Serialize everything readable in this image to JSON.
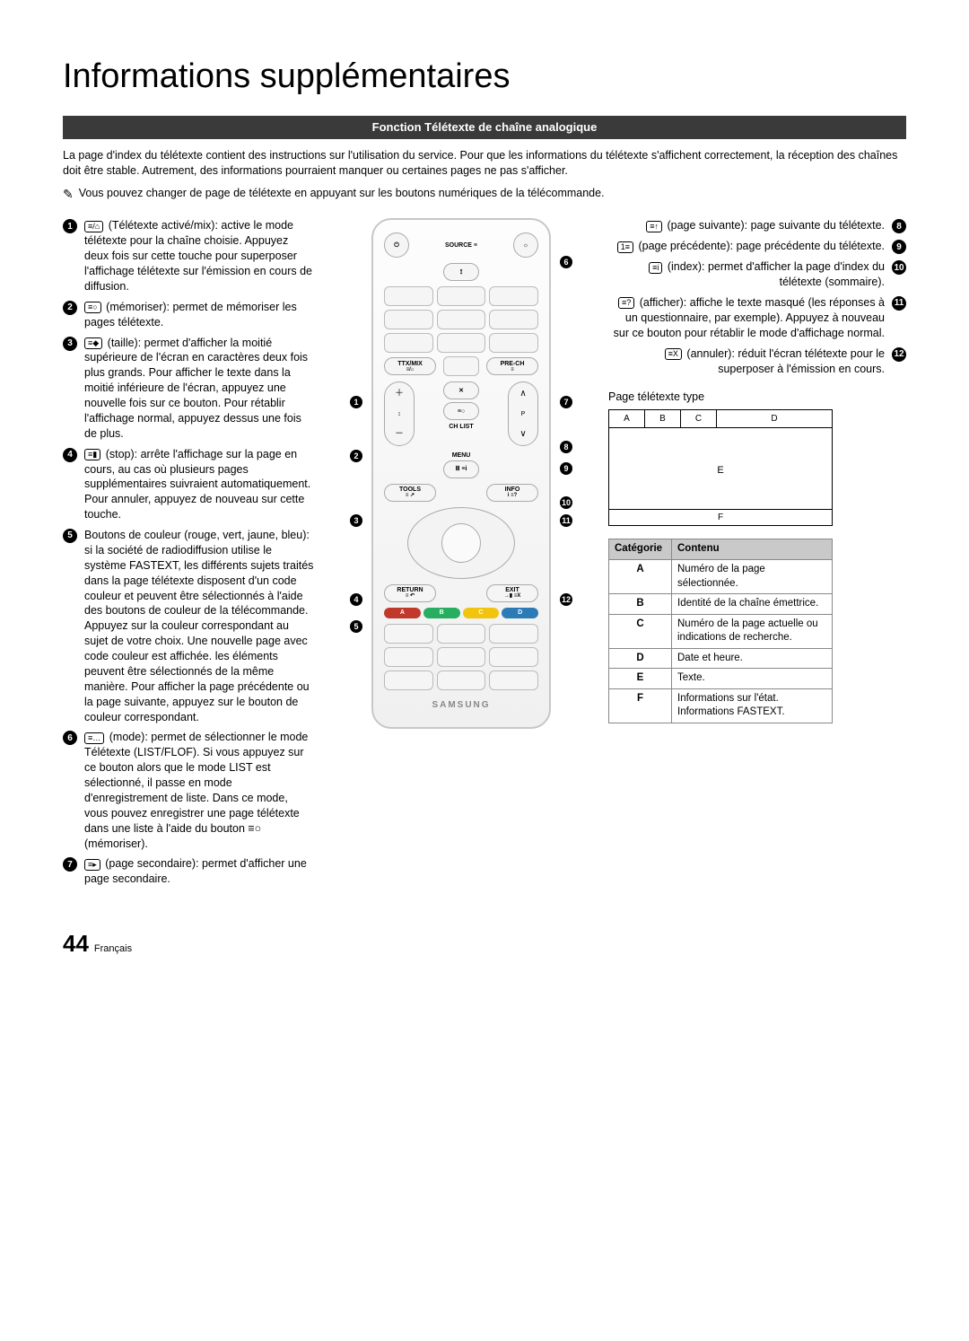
{
  "page": {
    "title": "Informations supplémentaires",
    "section_bar": "Fonction Télétexte de chaîne analogique",
    "intro": "La page d'index du télétexte contient des instructions sur l'utilisation du service. Pour que les informations du télétexte s'affichent correctement, la réception des chaînes doit être stable. Autrement, des informations pourraient manquer ou certaines pages ne pas s'afficher.",
    "note": "Vous pouvez changer de page de télétexte en appuyant sur les boutons numériques de la télécommande.",
    "note_icon": "✎"
  },
  "left_items": [
    {
      "n": "1",
      "icon": "≡/⌂",
      "text": "(Télétexte activé/mix): active le mode télétexte pour la chaîne choisie. Appuyez deux fois sur cette touche pour superposer l'affichage télétexte sur l'émission en cours de diffusion."
    },
    {
      "n": "2",
      "icon": "≡○",
      "text": "(mémoriser): permet de mémoriser les pages télétexte."
    },
    {
      "n": "3",
      "icon": "≡◆",
      "text": "(taille): permet d'afficher la moitié supérieure de l'écran en caractères deux fois plus grands. Pour afficher le texte dans la moitié inférieure de l'écran, appuyez une nouvelle fois sur ce bouton. Pour rétablir l'affichage normal, appuyez dessus une fois de plus."
    },
    {
      "n": "4",
      "icon": "≡▮",
      "text": "(stop): arrête l'affichage sur la page en cours, au cas où plusieurs pages supplémentaires suivraient automatiquement. Pour annuler, appuyez de nouveau sur cette touche."
    },
    {
      "n": "5",
      "icon": "",
      "text": "Boutons de couleur (rouge, vert, jaune, bleu): si la société de radiodiffusion utilise le système FASTEXT, les différents sujets traités dans la page télétexte disposent d'un code couleur et peuvent être sélectionnés à l'aide des boutons de couleur de la télécommande. Appuyez sur la couleur correspondant au sujet de votre choix. Une nouvelle page avec code couleur est affichée. les éléments peuvent être sélectionnés de la même manière. Pour afficher la page précédente ou la page suivante, appuyez sur le bouton de couleur correspondant."
    },
    {
      "n": "6",
      "icon": "≡…",
      "text": "(mode): permet de sélectionner le mode Télétexte (LIST/FLOF).\nSi vous appuyez sur ce bouton alors que le mode LIST est sélectionné, il passe en mode d'enregistrement de liste. Dans ce mode, vous pouvez enregistrer une page télétexte dans une liste à l'aide du bouton ≡○ (mémoriser)."
    },
    {
      "n": "7",
      "icon": "≡▸",
      "text": "(page secondaire): permet d'afficher une page secondaire."
    }
  ],
  "right_items": [
    {
      "n": "8",
      "icon": "≡↑",
      "text": "(page suivante): page suivante du télétexte."
    },
    {
      "n": "9",
      "icon": "1≡",
      "text": "(page précédente): page précédente du télétexte."
    },
    {
      "n": "10",
      "icon": "≡i",
      "text": "(index): permet d'afficher la page d'index du télétexte (sommaire)."
    },
    {
      "n": "11",
      "icon": "≡?",
      "text": "(afficher): affiche le texte masqué (les réponses à un questionnaire, par exemple). Appuyez à nouveau sur ce bouton pour rétablir le mode d'affichage normal."
    },
    {
      "n": "12",
      "icon": "≡X",
      "text": "(annuler): réduit l'écran télétexte pour le superposer à l'émission en cours."
    }
  ],
  "remote": {
    "source": "SOURCE ≡",
    "ttxmix": "TTX/MIX",
    "ttxmix2": "≡/⌂",
    "prech": "PRE-CH",
    "prech2": "≡",
    "chlist": "CH LIST",
    "menu": "MENU",
    "menu2": "Ⅲ ≡i",
    "tools": "TOOLS",
    "tools2": "≡ ↗",
    "info": "INFO",
    "info2": "i ≡?",
    "return": "RETURN",
    "return2": "≡ ↶",
    "exit": "EXIT",
    "exit2": "→▮ ≡X",
    "p_label": "P",
    "store": "≡○",
    "brand": "SAMSUNG",
    "colors": {
      "a": "A",
      "b": "B",
      "c": "C",
      "d": "D"
    }
  },
  "ttx_sample": {
    "heading": "Page télétexte type",
    "a": "A",
    "b": "B",
    "c": "C",
    "d": "D",
    "e": "E",
    "f": "F"
  },
  "cat_table": {
    "head_cat": "Catégorie",
    "head_cont": "Contenu",
    "rows": [
      {
        "k": "A",
        "v": "Numéro de la page sélectionnée."
      },
      {
        "k": "B",
        "v": "Identité de la chaîne émettrice."
      },
      {
        "k": "C",
        "v": "Numéro de la page actuelle ou indications de recherche."
      },
      {
        "k": "D",
        "v": "Date et heure."
      },
      {
        "k": "E",
        "v": "Texte."
      },
      {
        "k": "F",
        "v": "Informations sur l'état. Informations FASTEXT."
      }
    ]
  },
  "footer": {
    "page": "44",
    "lang": "Français"
  }
}
